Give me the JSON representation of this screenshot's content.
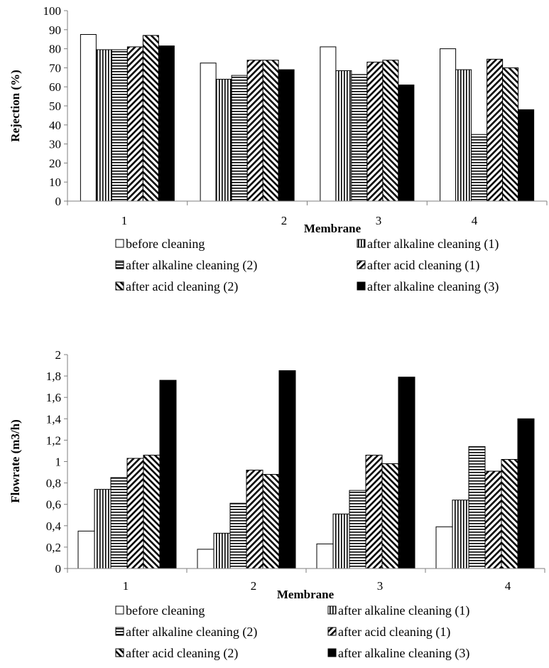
{
  "chart_data": [
    {
      "type": "bar",
      "xlabel": "Membrane",
      "ylabel": "Rejection (%)",
      "ylim": [
        0,
        100
      ],
      "yticks": [
        0,
        10,
        20,
        30,
        40,
        50,
        60,
        70,
        80,
        90,
        100
      ],
      "categories": [
        "1",
        "2",
        "3",
        "4"
      ],
      "grid": false,
      "legend_position": "bottom",
      "series": [
        {
          "name": "before cleaning",
          "pattern": "empty",
          "values": [
            87.5,
            72.5,
            81,
            80
          ]
        },
        {
          "name": "after alkaline cleaning (1)",
          "pattern": "vertical",
          "values": [
            79.5,
            64,
            68.5,
            69
          ]
        },
        {
          "name": "after alkaline cleaning (2)",
          "pattern": "horizontal",
          "values": [
            79.5,
            66,
            66.5,
            35
          ]
        },
        {
          "name": "after acid cleaning (1)",
          "pattern": "diag-up",
          "values": [
            81,
            74,
            73,
            74.5
          ]
        },
        {
          "name": "after acid cleaning (2)",
          "pattern": "diag-down",
          "values": [
            87,
            74,
            74,
            70
          ]
        },
        {
          "name": "after alkaline cleaning (3)",
          "pattern": "solid",
          "values": [
            81.5,
            69,
            61,
            48
          ]
        }
      ]
    },
    {
      "type": "bar",
      "xlabel": "Membrane",
      "ylabel": "Flowrate  (m3/h)",
      "ylim": [
        0,
        2
      ],
      "yticks": [
        "0",
        "0,2",
        "0,4",
        "0,6",
        "0,8",
        "1",
        "1,2",
        "1,4",
        "1,6",
        "1,8",
        "2"
      ],
      "categories": [
        "1",
        "2",
        "3",
        "4"
      ],
      "grid": false,
      "legend_position": "bottom",
      "series": [
        {
          "name": "before cleaning",
          "pattern": "empty",
          "values": [
            0.35,
            0.18,
            0.23,
            0.39
          ]
        },
        {
          "name": "after alkaline cleaning (1)",
          "pattern": "vertical",
          "values": [
            0.74,
            0.33,
            0.51,
            0.64
          ]
        },
        {
          "name": "after alkaline cleaning (2)",
          "pattern": "horizontal",
          "values": [
            0.85,
            0.61,
            0.73,
            1.14
          ]
        },
        {
          "name": "after acid cleaning (1)",
          "pattern": "diag-up",
          "values": [
            1.03,
            0.92,
            1.06,
            0.91
          ]
        },
        {
          "name": "after acid cleaning (2)",
          "pattern": "diag-down",
          "values": [
            1.06,
            0.88,
            0.98,
            1.02
          ]
        },
        {
          "name": "after alkaline cleaning (3)",
          "pattern": "solid",
          "values": [
            1.76,
            1.85,
            1.79,
            1.4
          ]
        }
      ]
    }
  ]
}
